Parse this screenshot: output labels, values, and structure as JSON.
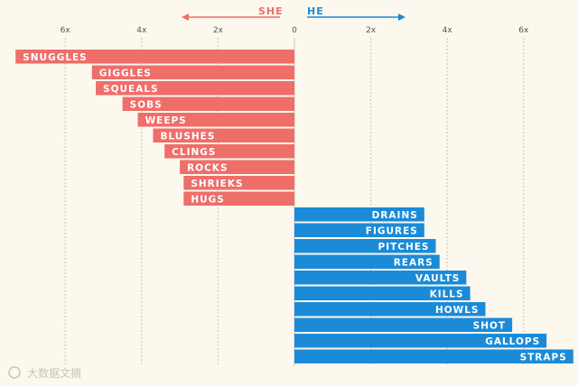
{
  "chart_data": {
    "type": "bar",
    "orientation": "horizontal-diverging",
    "direction_labels": {
      "left": "SHE",
      "right": "HE"
    },
    "x_ticks": [
      "6x",
      "4x",
      "2x",
      "0",
      "2x",
      "4x",
      "6x"
    ],
    "xlim": [
      -7.3,
      7.3
    ],
    "series": [
      {
        "name": "SHE",
        "color": "#ee6e6a",
        "categories": [
          "SNUGGLES",
          "GIGGLES",
          "SQUEALS",
          "SOBS",
          "WEEPS",
          "BLUSHES",
          "CLINGS",
          "ROCKS",
          "SHRIEKS",
          "HUGS"
        ],
        "values": [
          7.3,
          5.3,
          5.2,
          4.5,
          4.1,
          3.7,
          3.4,
          3.0,
          2.9,
          2.9
        ]
      },
      {
        "name": "HE",
        "color": "#1b8bd8",
        "categories": [
          "DRAINS",
          "FIGURES",
          "PITCHES",
          "REARS",
          "VAULTS",
          "KILLS",
          "HOWLS",
          "SHOT",
          "GALLOPS",
          "STRAPS"
        ],
        "values": [
          3.4,
          3.4,
          3.7,
          3.8,
          4.5,
          4.6,
          5.0,
          5.7,
          6.6,
          7.3
        ]
      }
    ]
  },
  "watermark": "大数据文摘",
  "colors": {
    "background": "#fdf8ee",
    "she": "#ee6e6a",
    "he": "#1b8bd8",
    "grid": "#c7c3ba"
  }
}
